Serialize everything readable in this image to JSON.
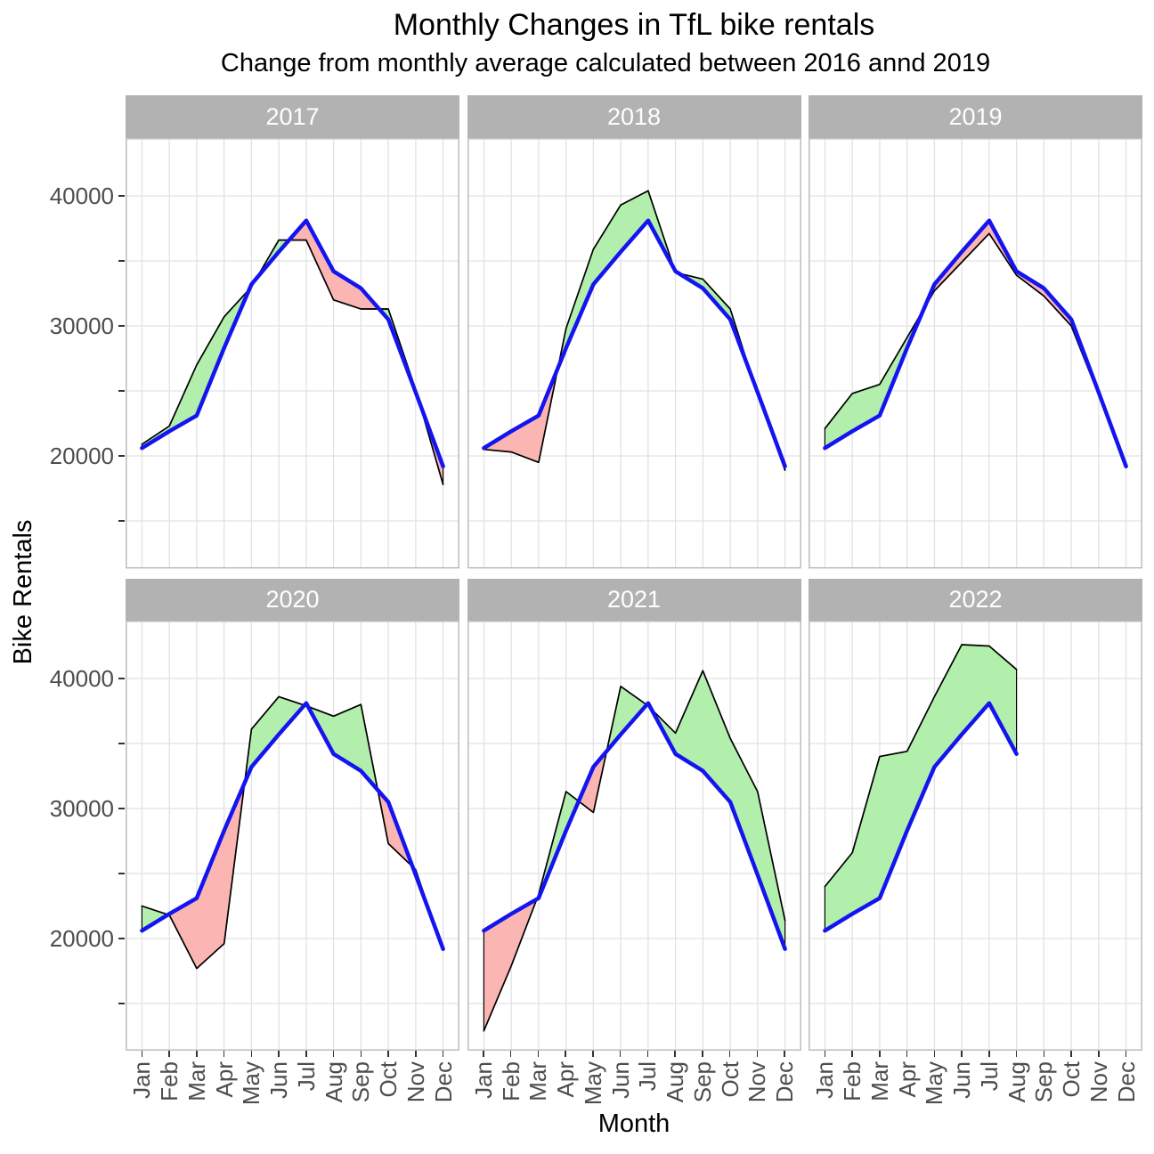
{
  "title": "Monthly Changes in TfL bike rentals",
  "subtitle": "Change from monthly average calculated between 2016 annd 2019",
  "x_axis_title": "Month",
  "y_axis_title": "Bike Rentals",
  "y_axis": {
    "major": [
      {
        "value": 40000,
        "label": "40000"
      },
      {
        "value": 30000,
        "label": "30000"
      },
      {
        "value": 20000,
        "label": "20000"
      }
    ],
    "minor": [
      35000,
      25000,
      15000
    ]
  },
  "colors": {
    "average_line": "#1414f0",
    "actual_line": "#000000",
    "ribbon_above_fill": "#b2efac",
    "ribbon_below_fill": "#fbb5b2",
    "ribbon_outline": "#000000",
    "strip_background": "#b2b2b2",
    "strip_text": "#ffffff",
    "gridline": "#e2e2e2",
    "panel_border": "#bdbdbd",
    "axis_text": "#4d4d4d",
    "tick": "#333333"
  },
  "chart_data": {
    "type": "area",
    "title": "Monthly Changes in TfL bike rentals",
    "subtitle": "Change from monthly average calculated between 2016 annd 2019",
    "xlabel": "Month",
    "ylabel": "Bike Rentals",
    "categories": [
      "Jan",
      "Feb",
      "Mar",
      "Apr",
      "May",
      "Jun",
      "Jul",
      "Aug",
      "Sep",
      "Oct",
      "Nov",
      "Dec"
    ],
    "ylim": [
      11400,
      44500
    ],
    "grid": true,
    "legend": "none",
    "facet_layout": {
      "rows": 2,
      "cols": 3
    },
    "average_series": {
      "name": "monthly average 2016-2019",
      "values": [
        20600,
        21900,
        23100,
        28300,
        33200,
        35700,
        38100,
        34200,
        32900,
        30500,
        24900,
        19200
      ]
    },
    "facets": [
      {
        "label": "2017",
        "actual": [
          20900,
          22300,
          27000,
          30700,
          33000,
          36600,
          36600,
          32000,
          31300,
          31300,
          25100,
          17800
        ]
      },
      {
        "label": "2018",
        "actual": [
          20500,
          20300,
          19500,
          29800,
          35900,
          39300,
          40400,
          34100,
          33600,
          31300,
          24700,
          18900
        ]
      },
      {
        "label": "2019",
        "actual": [
          22100,
          24800,
          25500,
          29100,
          32700,
          34900,
          37100,
          33900,
          32300,
          30000,
          24700,
          19100
        ]
      },
      {
        "label": "2020",
        "actual": [
          22500,
          21800,
          17700,
          19600,
          36100,
          38600,
          37900,
          37100,
          38000,
          27300,
          25300,
          19100
        ]
      },
      {
        "label": "2021",
        "actual": [
          12900,
          17900,
          23400,
          31300,
          29700,
          39400,
          37900,
          35800,
          40600,
          35400,
          31300,
          21400
        ]
      },
      {
        "label": "2022",
        "actual": [
          24000,
          26600,
          34000,
          34400,
          38600,
          42600,
          42500,
          40700
        ]
      }
    ]
  }
}
